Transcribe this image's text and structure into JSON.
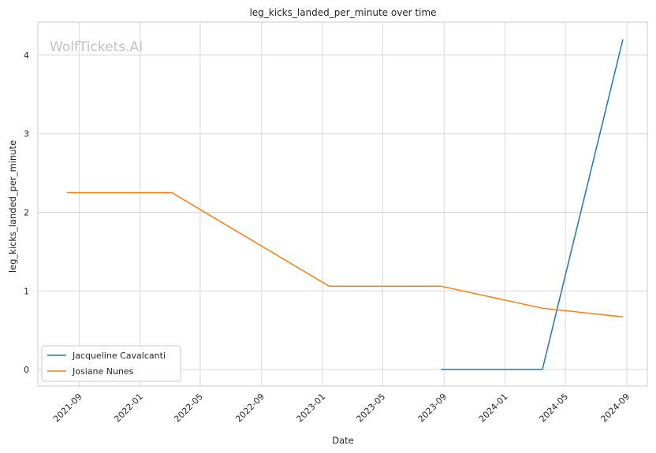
{
  "chart_data": {
    "type": "line",
    "title": "leg_kicks_landed_per_minute over time",
    "xlabel": "Date",
    "ylabel": "leg_kicks_landed_per_minute",
    "watermark": "WolfTickets.AI",
    "x_ticks": [
      "2021-09",
      "2022-01",
      "2022-05",
      "2022-09",
      "2023-01",
      "2023-05",
      "2023-09",
      "2024-01",
      "2024-05",
      "2024-09"
    ],
    "y_ticks": [
      "0",
      "1",
      "2",
      "3",
      "4"
    ],
    "xlim": [
      "2021-06-10",
      "2024-10-12"
    ],
    "ylim": [
      -0.21,
      4.42
    ],
    "grid": true,
    "legend_position": "bottom-left",
    "series": [
      {
        "name": "Jacqueline Cavalcanti",
        "color": "#1f77b4",
        "x": [
          "2023-08-26",
          "2024-03-16",
          "2024-08-24"
        ],
        "y": [
          0.0,
          0.0,
          4.2
        ]
      },
      {
        "name": "Josiane Nunes",
        "color": "#ff7f0e",
        "x": [
          "2021-08-07",
          "2022-03-05",
          "2023-01-14",
          "2023-08-26",
          "2024-03-16",
          "2024-08-24"
        ],
        "y": [
          2.25,
          2.25,
          1.06,
          1.06,
          0.78,
          0.67
        ]
      }
    ]
  }
}
